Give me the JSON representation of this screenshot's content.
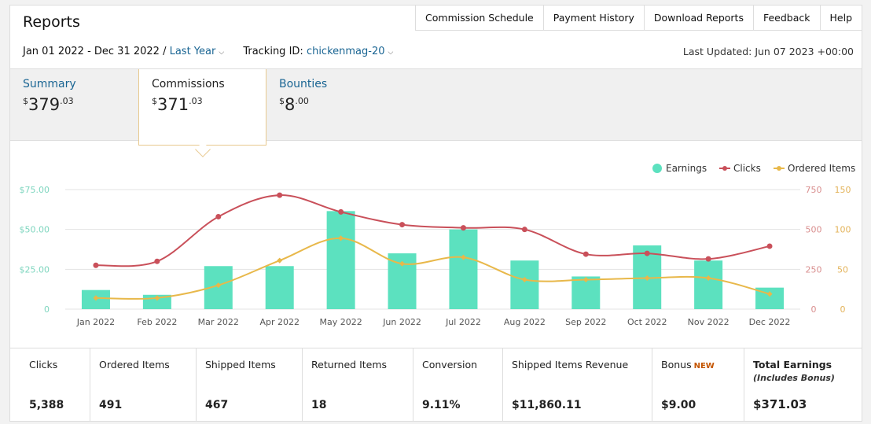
{
  "header": {
    "title": "Reports"
  },
  "nav": [
    "Commission Schedule",
    "Payment History",
    "Download Reports",
    "Feedback",
    "Help"
  ],
  "filters": {
    "date_range": "Jan 01 2022 - Dec 31 2022 /",
    "period": "Last Year",
    "tracking_label": "Tracking ID:",
    "tracking_id": "chickenmag-20",
    "last_updated": "Last Updated: Jun 07 2023 +00:00"
  },
  "tabs": {
    "summary": {
      "label": "Summary",
      "currency": "$",
      "whole": "379",
      "cents": ".03"
    },
    "commissions": {
      "label": "Commissions",
      "currency": "$",
      "whole": "371",
      "cents": ".03"
    },
    "bounties": {
      "label": "Bounties",
      "currency": "$",
      "whole": "8",
      "cents": ".00"
    }
  },
  "colors": {
    "earnings": "#5ce1bf",
    "clicks": "#c9505a",
    "ordered": "#e8b84a",
    "link": "#1a6593"
  },
  "chart_data": {
    "type": "bar",
    "categories": [
      "Jan 2022",
      "Feb 2022",
      "Mar 2022",
      "Apr 2022",
      "May 2022",
      "Jun 2022",
      "Jul 2022",
      "Aug 2022",
      "Sep 2022",
      "Oct 2022",
      "Nov 2022",
      "Dec 2022"
    ],
    "legend": [
      "Earnings",
      "Clicks",
      "Ordered Items"
    ],
    "legend_position": "top-right",
    "y_left": {
      "ticks": [
        "$75.00",
        "$50.00",
        "$25.00",
        "0"
      ],
      "range": [
        0,
        75
      ]
    },
    "y_clicks": {
      "ticks": [
        "750",
        "500",
        "250",
        "0"
      ],
      "range": [
        0,
        750
      ]
    },
    "y_ordered": {
      "ticks": [
        "150",
        "100",
        "50",
        "0"
      ],
      "range": [
        0,
        150
      ]
    },
    "series": [
      {
        "name": "Earnings",
        "type": "bar",
        "values": [
          12,
          9,
          27,
          27,
          61.5,
          35,
          50,
          30.5,
          20.5,
          40,
          30.5,
          13.5
        ]
      },
      {
        "name": "Clicks",
        "type": "line",
        "values": [
          275,
          300,
          580,
          715,
          610,
          530,
          510,
          500,
          345,
          350,
          315,
          395
        ]
      },
      {
        "name": "Ordered Items",
        "type": "line",
        "values": [
          14,
          14,
          30,
          61,
          89,
          57,
          65,
          37,
          37,
          39,
          39,
          19
        ]
      }
    ],
    "grid": true
  },
  "stats": [
    {
      "label": "Clicks",
      "value": "5,388"
    },
    {
      "label": "Ordered Items",
      "value": "491"
    },
    {
      "label": "Shipped Items",
      "value": "467"
    },
    {
      "label": "Returned Items",
      "value": "18"
    },
    {
      "label": "Conversion",
      "value": "9.11%"
    },
    {
      "label": "Shipped Items Revenue",
      "value": "$11,860.11"
    },
    {
      "label": "Bonus",
      "badge": "NEW",
      "value": "$9.00"
    },
    {
      "label": "Total Earnings",
      "sub": "(Includes Bonus)",
      "value": "$371.03"
    }
  ]
}
